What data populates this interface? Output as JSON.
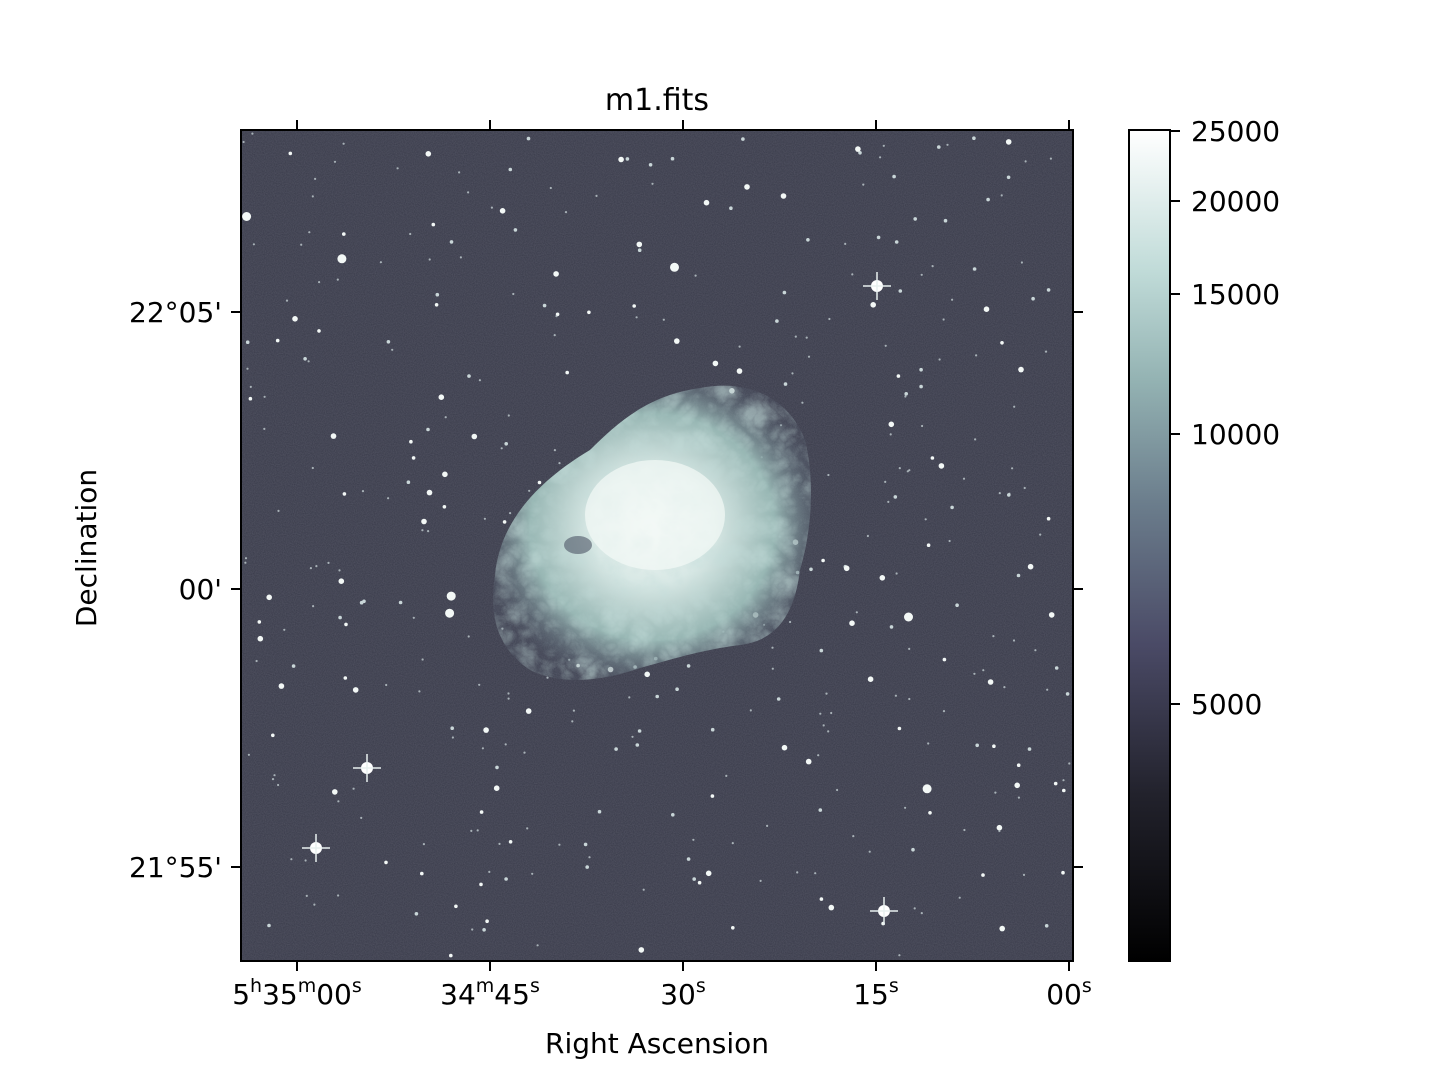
{
  "title": "m1.fits",
  "xlabel": "Right Ascension",
  "ylabel": "Declination",
  "x_ticks": [
    {
      "h": "5",
      "hu": "h",
      "m": "35",
      "mu": "m",
      "s": "00",
      "su": "s"
    },
    {
      "h": "",
      "hu": "",
      "m": "34",
      "mu": "m",
      "s": "45",
      "su": "s"
    },
    {
      "h": "",
      "hu": "",
      "m": "",
      "mu": "",
      "s": "30",
      "su": "s"
    },
    {
      "h": "",
      "hu": "",
      "m": "",
      "mu": "",
      "s": "15",
      "su": "s"
    },
    {
      "h": "",
      "hu": "",
      "m": "",
      "mu": "",
      "s": "00",
      "su": "s"
    }
  ],
  "y_ticks": [
    "22°05'",
    "00'",
    "21°55'"
  ],
  "colorbar": {
    "ticks": [
      "25000",
      "20000",
      "15000",
      "10000",
      "5000"
    ],
    "scale": "sqrt",
    "colormap": "bone",
    "colors": [
      "#000000",
      "#3f3f57",
      "#7f95a0",
      "#a9d0cc",
      "#ffffff"
    ]
  },
  "image": {
    "description_colors": {
      "background": "#3a3b4a",
      "nebula_core": "#eef4f2",
      "nebula_edge": "#9fb9b6"
    }
  }
}
